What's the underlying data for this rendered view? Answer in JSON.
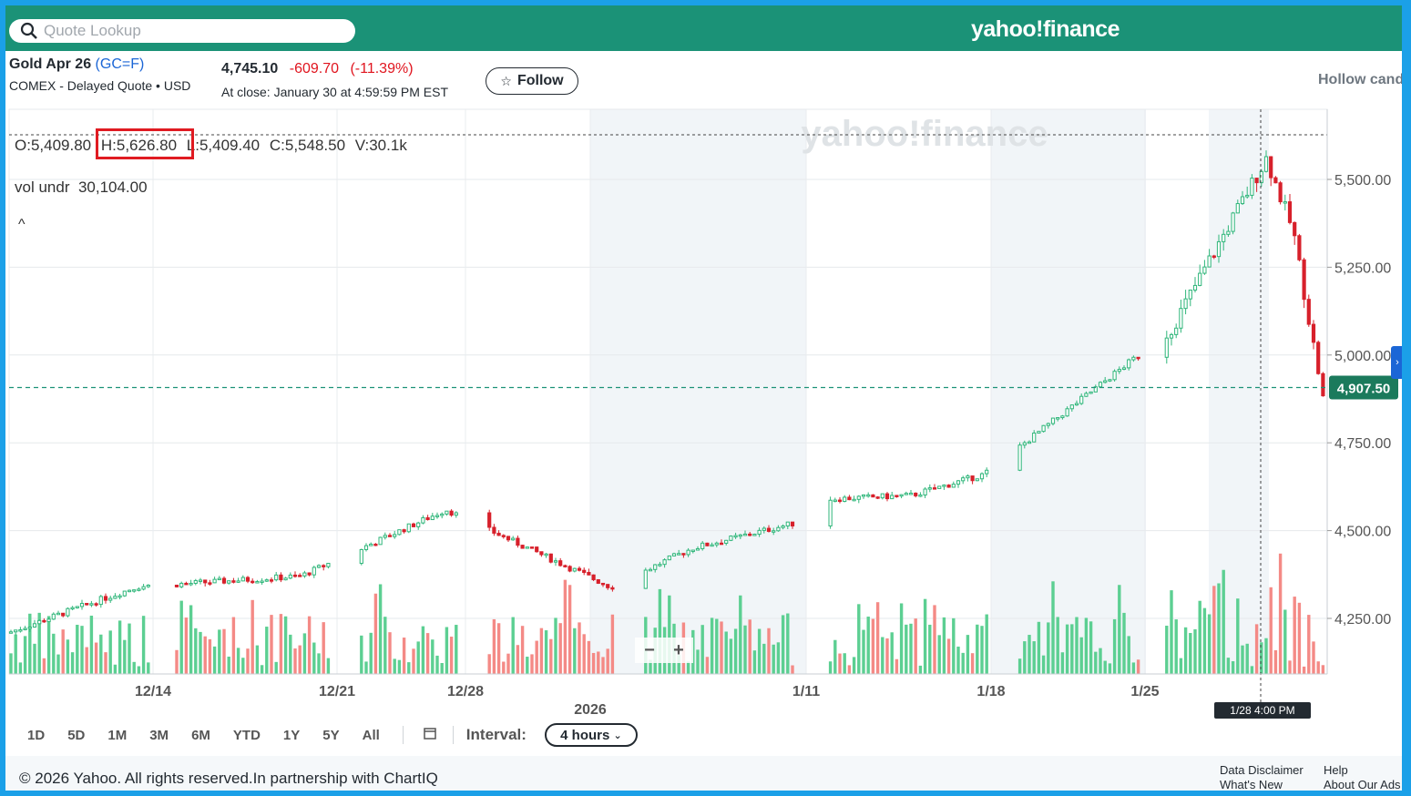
{
  "header": {
    "search_placeholder": "Quote Lookup",
    "brand": "yahoo!finance",
    "watermark": "yahoo!finance"
  },
  "quote": {
    "name": "Gold Apr 26",
    "symbol": "(GC=F)",
    "exchange": "COMEX - Delayed Quote • USD",
    "price": "4,745.10",
    "change": "-609.70",
    "change_pct": "(-11.39%)",
    "close_time": "At close: January 30 at 4:59:59 PM EST",
    "follow_label": "Follow",
    "chart_style": "Hollow cand"
  },
  "ohlc": {
    "open": "O:5,409.80",
    "high": "H:5,626.80",
    "low": "L:5,409.40",
    "close": "C:5,548.50",
    "volume": "V:30.1k",
    "vol_label": "vol undr",
    "vol_value": "30,104.00"
  },
  "colors": {
    "up": "#2fb67a",
    "down": "#d7202b",
    "vol_up": "#5ccf92",
    "vol_down": "#f48a86",
    "accent": "#1b9277",
    "highlight": "#e01b22"
  },
  "ranges": [
    "1D",
    "5D",
    "1M",
    "3M",
    "6M",
    "YTD",
    "1Y",
    "5Y",
    "All"
  ],
  "interval": {
    "label": "Interval:",
    "value": "4 hours"
  },
  "crosshair_label": "1/28 4:00 PM",
  "footer": {
    "copyright": "© 2026 Yahoo. All rights reserved.In partnership with ChartIQ",
    "link1": "Data Disclaimer",
    "link2": "What's New",
    "link3": "Help",
    "link4": "About Our Ads"
  },
  "chart_data": {
    "type": "candlestick",
    "price_label": "4,907.50",
    "y_ticks": [
      "5,500.00",
      "5,250.00",
      "5,000.00",
      "4,750.00",
      "4,500.00",
      "4,250.00"
    ],
    "y_tick_values": [
      5500,
      5250,
      5000,
      4750,
      4500,
      4250
    ],
    "ylim": [
      4100,
      5650
    ],
    "current_price": 4907.5,
    "x_ticks": [
      "12/14",
      "12/21",
      "12/28",
      "2026",
      "1/11",
      "1/18",
      "1/25"
    ],
    "weekly_closes": [
      {
        "date": "12/08",
        "value": 4210
      },
      {
        "date": "12/14",
        "value": 4340
      },
      {
        "date": "12/21",
        "value": 4370
      },
      {
        "date": "12/24",
        "value": 4560
      },
      {
        "date": "12/28",
        "value": 4540
      },
      {
        "date": "12/31",
        "value": 4340
      },
      {
        "date": "1/05",
        "value": 4450
      },
      {
        "date": "1/08",
        "value": 4520
      },
      {
        "date": "1/11",
        "value": 4590
      },
      {
        "date": "1/15",
        "value": 4600
      },
      {
        "date": "1/18",
        "value": 4660
      },
      {
        "date": "1/21",
        "value": 4820
      },
      {
        "date": "1/23",
        "value": 4980
      },
      {
        "date": "1/26",
        "value": 5070
      },
      {
        "date": "1/28",
        "value": 5560
      },
      {
        "date": "1/29",
        "value": 5350
      },
      {
        "date": "1/30",
        "value": 4880
      }
    ]
  }
}
